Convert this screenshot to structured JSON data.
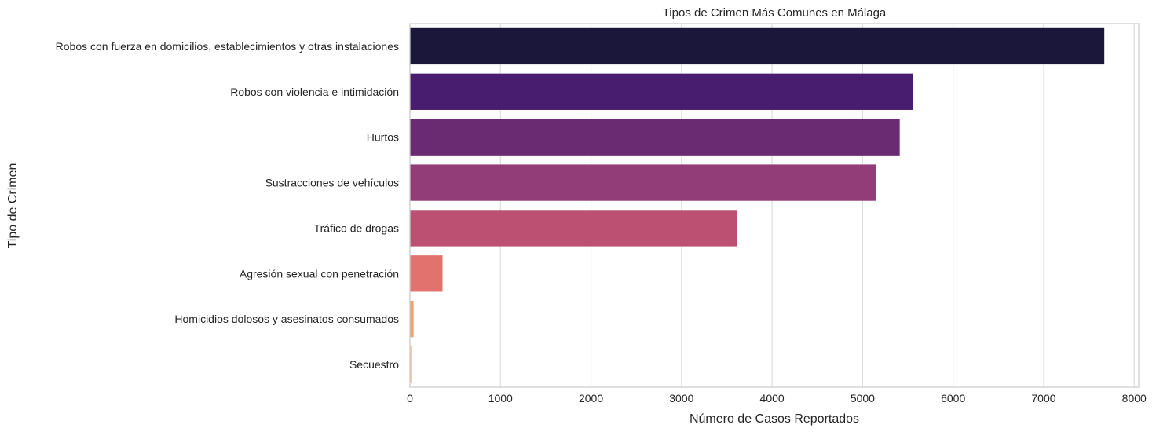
{
  "chart_data": {
    "type": "bar",
    "orientation": "horizontal",
    "title": "Tipos de Crimen Más Comunes en Málaga",
    "xlabel": "Número de Casos Reportados",
    "ylabel": "Tipo de Crimen",
    "xlim": [
      0,
      8050
    ],
    "xticks": [
      0,
      1000,
      2000,
      3000,
      4000,
      5000,
      6000,
      7000,
      8000
    ],
    "grid": "vertical",
    "categories": [
      "Robos con fuerza en domicilios, establecimientos y otras instalaciones",
      "Robos con violencia e intimidación",
      "Hurtos",
      "Sustracciones de vehículos",
      "Tráfico de drogas",
      "Agresión sexual con penetración",
      "Homicidios dolosos y asesinatos consumados",
      "Secuestro"
    ],
    "values": [
      7670,
      5560,
      5410,
      5150,
      3610,
      360,
      40,
      25
    ],
    "colors": [
      "#1b173a",
      "#481c6e",
      "#6b2b72",
      "#923c78",
      "#bc5073",
      "#e2726d",
      "#f29e6e",
      "#f6caa4"
    ]
  }
}
